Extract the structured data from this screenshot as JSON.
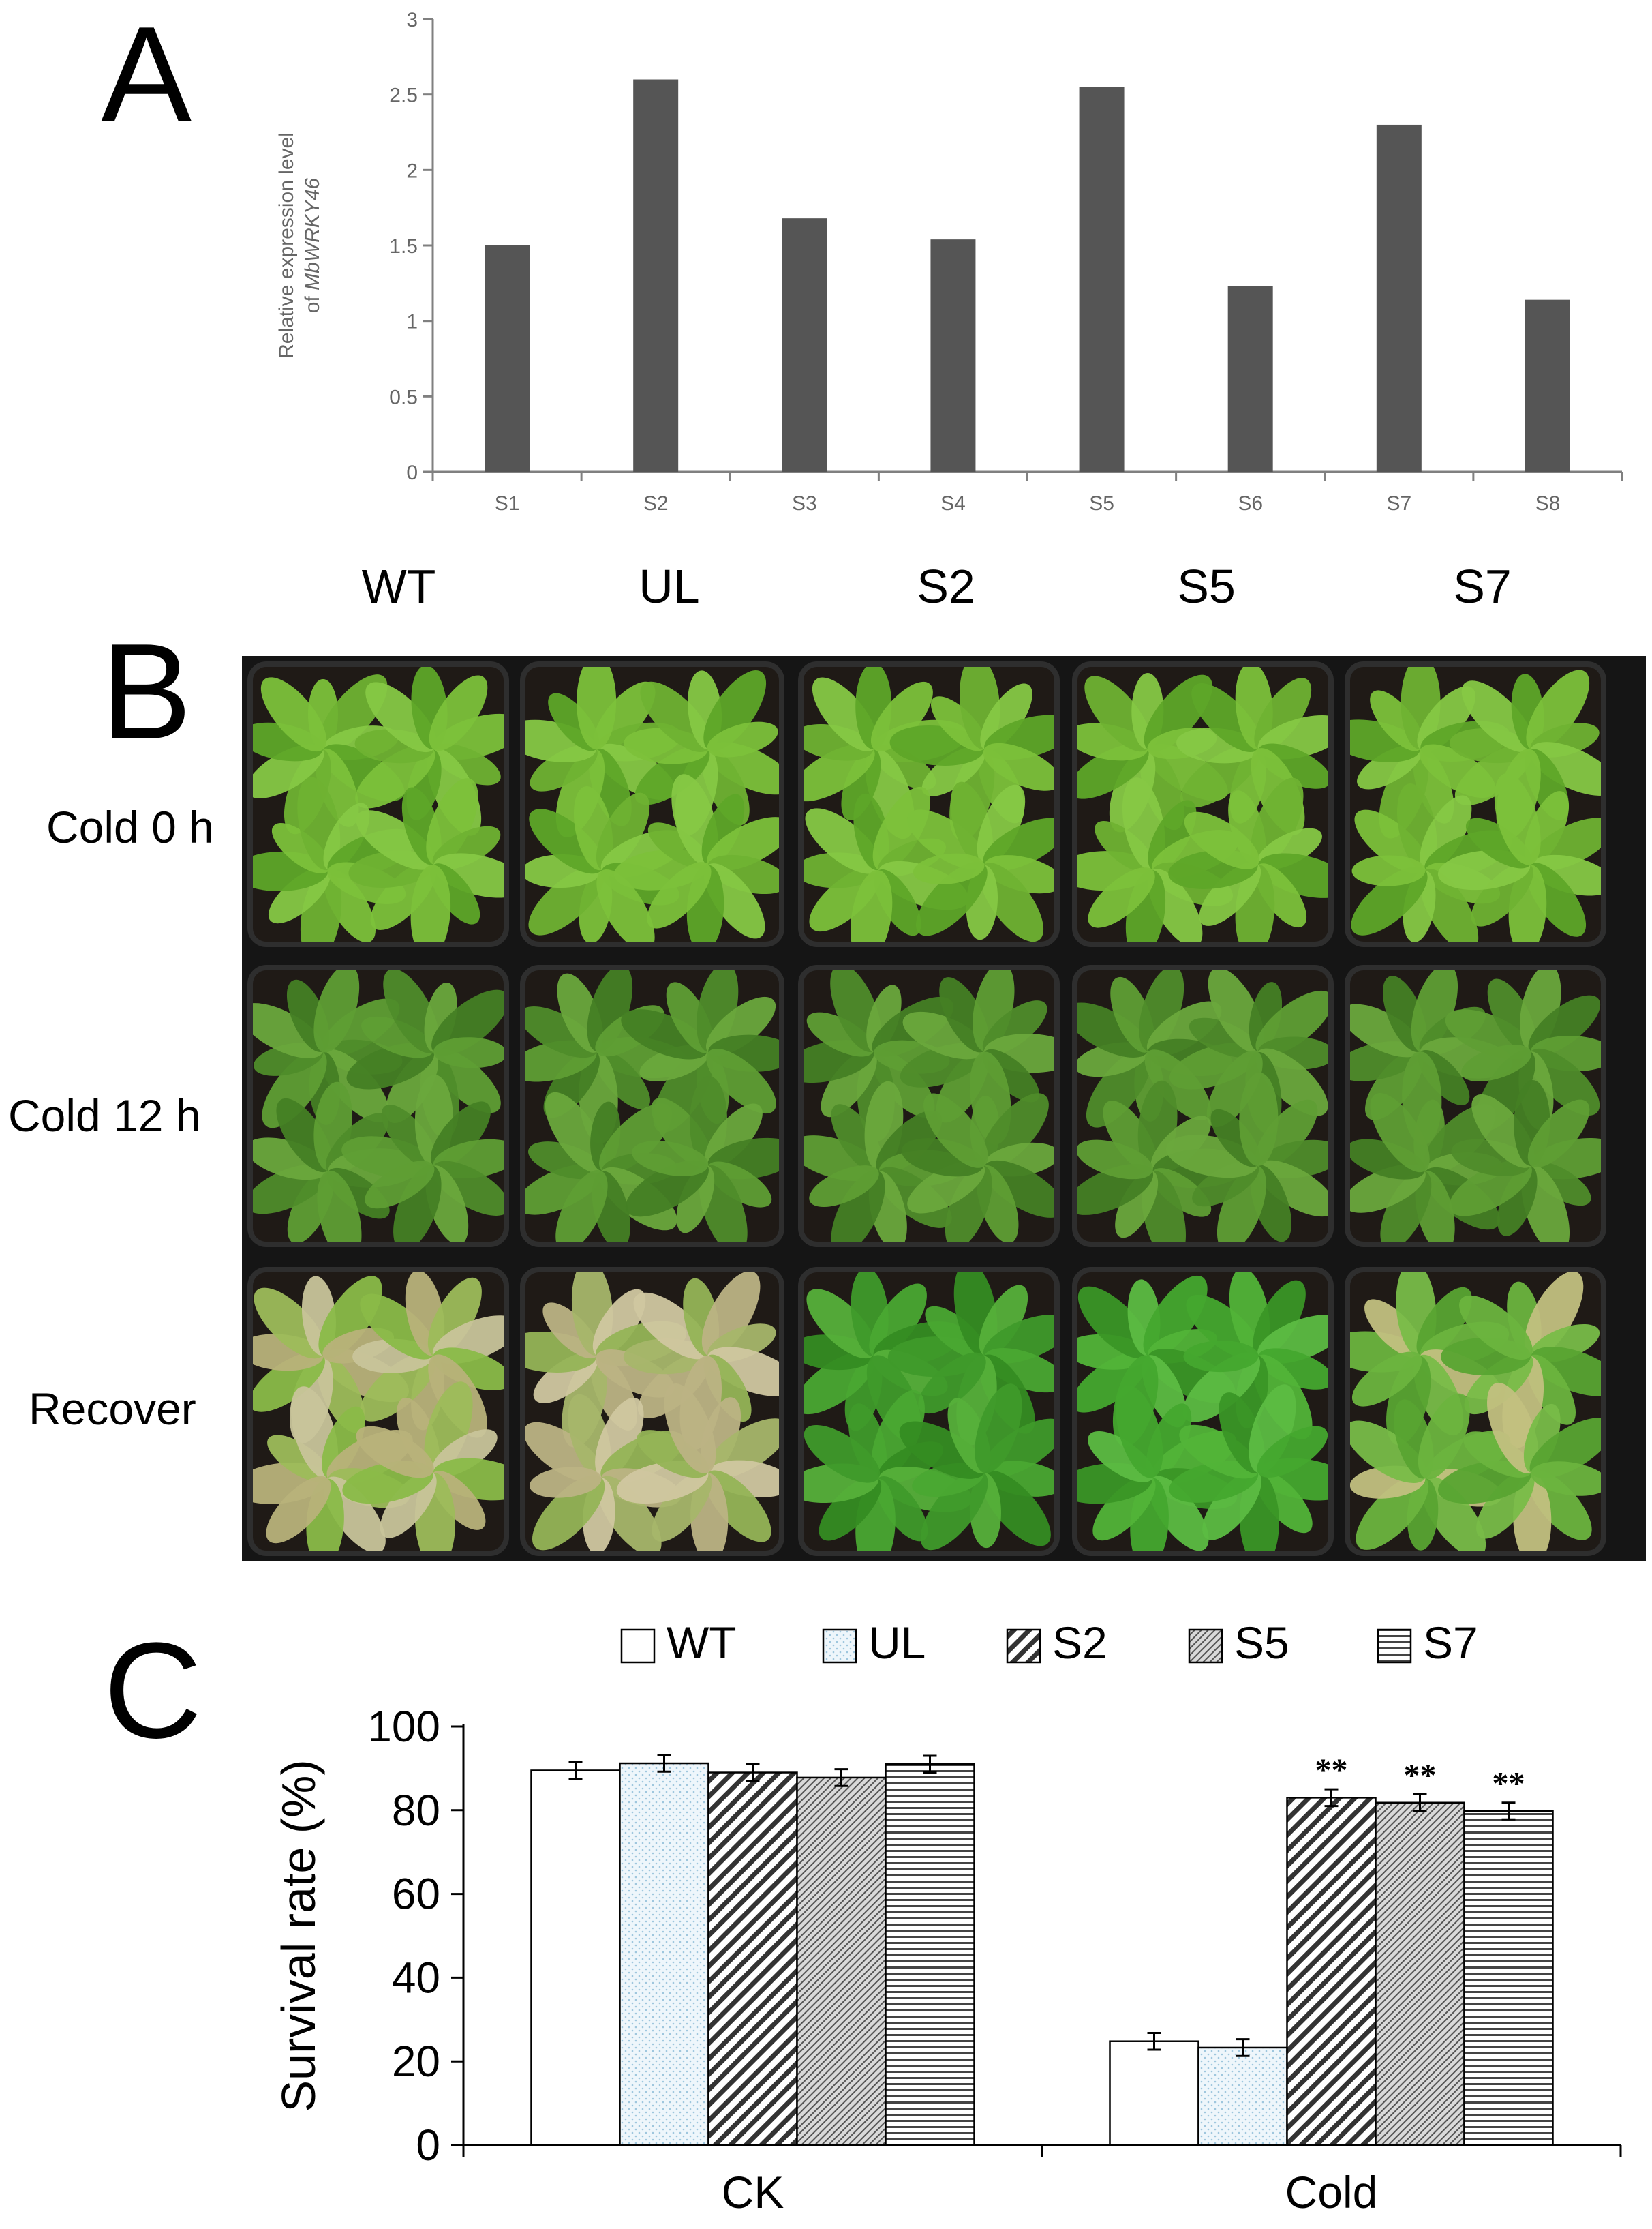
{
  "panels": {
    "a": "A",
    "b": "B",
    "c": "C"
  },
  "photo": {
    "columns": [
      "WT",
      "UL",
      "S2",
      "S5",
      "S7"
    ],
    "rows": [
      "Cold 0 h",
      "Cold 12 h",
      "Recover"
    ]
  },
  "chart_data": [
    {
      "type": "bar",
      "categories": [
        "S1",
        "S2",
        "S3",
        "S4",
        "S5",
        "S6",
        "S7",
        "S8"
      ],
      "values": [
        1.5,
        2.6,
        1.68,
        1.54,
        2.55,
        1.23,
        2.3,
        1.14
      ],
      "ylabel_line1": "Relative expression level",
      "ylabel_line2_prefix": "of ",
      "ylabel_line2_gene": "MbWRKY46",
      "ylim": [
        0,
        3
      ],
      "yticks": [
        "0",
        "0.5",
        "1",
        "1.5",
        "2",
        "2.5",
        "3"
      ],
      "bar_color": "#555555"
    },
    {
      "type": "bar",
      "categories": [
        "CK",
        "Cold"
      ],
      "series": [
        {
          "name": "WT",
          "values": [
            89.5,
            24.8
          ],
          "errors": [
            2.0,
            2.0
          ]
        },
        {
          "name": "UL",
          "values": [
            91.2,
            23.3
          ],
          "errors": [
            2.0,
            2.0
          ]
        },
        {
          "name": "S2",
          "values": [
            89.0,
            83.0
          ],
          "errors": [
            2.0,
            2.0
          ]
        },
        {
          "name": "S5",
          "values": [
            87.8,
            81.8
          ],
          "errors": [
            2.0,
            2.0
          ]
        },
        {
          "name": "S7",
          "values": [
            91.0,
            79.8
          ],
          "errors": [
            2.0,
            2.0
          ]
        }
      ],
      "annotations": [
        "",
        "",
        "**",
        "**",
        "**"
      ],
      "ylabel": "Survival rate (%)",
      "ylim": [
        0,
        100
      ],
      "yticks": [
        "0",
        "20",
        "40",
        "60",
        "80",
        "100"
      ],
      "legend": "top"
    }
  ]
}
